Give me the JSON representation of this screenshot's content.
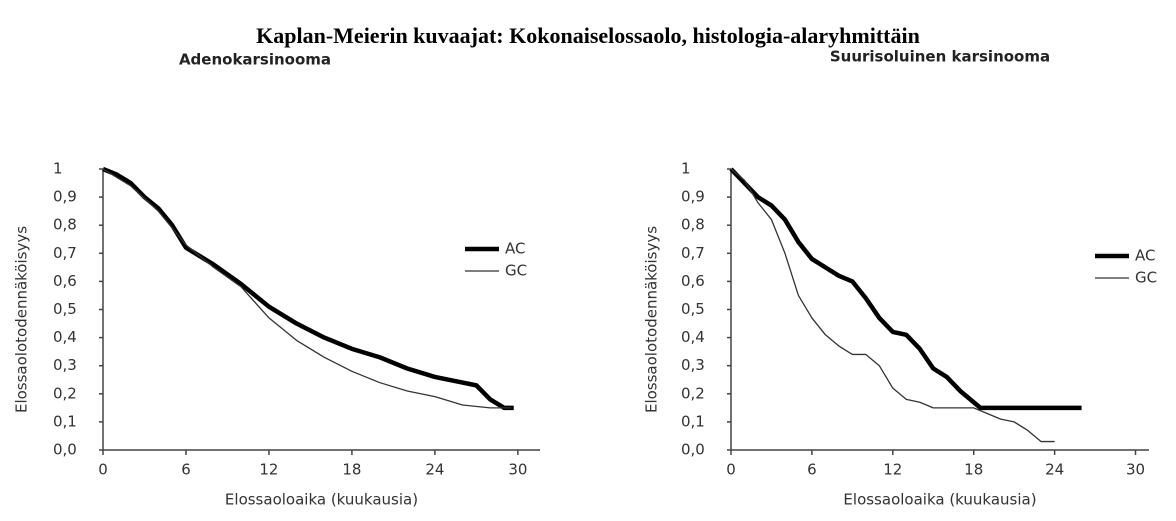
{
  "title": "Kaplan-Meierin kuvaajat: Kokonaiselossaolo, histologia-alaryhmittäin",
  "chart_data": [
    {
      "type": "line",
      "title": "Adenokarsinooma",
      "xlabel": "Elossaoloaika (kuukausia)",
      "ylabel": "Elossaolotodennäköisyys",
      "xlim": [
        0,
        31.6
      ],
      "xticks": [
        0,
        6,
        12,
        18,
        24,
        30
      ],
      "ylim": [
        0,
        1
      ],
      "yticks": [
        {
          "value": 0,
          "label": "0,0"
        },
        {
          "value": 0.1,
          "label": "0,1"
        },
        {
          "value": 0.2,
          "label": "0,2"
        },
        {
          "value": 0.3,
          "label": "0,3"
        },
        {
          "value": 0.4,
          "label": "0,4"
        },
        {
          "value": 0.5,
          "label": "0,5"
        },
        {
          "value": 0.6,
          "label": "0,6"
        },
        {
          "value": 0.7,
          "label": "0,7"
        },
        {
          "value": 0.8,
          "label": "0,8"
        },
        {
          "value": 0.9,
          "label": "0,9"
        },
        1
      ],
      "series": [
        {
          "name": "AC",
          "color": "#000000",
          "x": [
            0,
            1,
            2,
            3,
            4,
            5,
            6,
            8,
            10,
            12,
            14,
            16,
            18,
            20,
            22,
            24,
            26,
            27,
            28,
            29,
            29.7
          ],
          "values": [
            1,
            0.98,
            0.95,
            0.9,
            0.86,
            0.8,
            0.72,
            0.66,
            0.59,
            0.51,
            0.45,
            0.4,
            0.36,
            0.33,
            0.29,
            0.26,
            0.24,
            0.23,
            0.18,
            0.15,
            0.15
          ]
        },
        {
          "name": "GC",
          "color": "#333333",
          "x": [
            0,
            2,
            4,
            6,
            8,
            10,
            12,
            14,
            16,
            18,
            20,
            22,
            24,
            26,
            28,
            29.5
          ],
          "values": [
            1,
            0.94,
            0.85,
            0.73,
            0.65,
            0.58,
            0.47,
            0.39,
            0.33,
            0.28,
            0.24,
            0.21,
            0.19,
            0.16,
            0.15,
            0.15
          ]
        }
      ]
    },
    {
      "type": "line",
      "title": "Suurisoluinen karsinooma",
      "xlabel": "Elossaoloaika (kuukausia)",
      "ylabel": "Elossaolotodennäköisyys",
      "xlim": [
        0,
        31
      ],
      "xticks": [
        0,
        6,
        12,
        18,
        24,
        30
      ],
      "ylim": [
        0,
        1
      ],
      "yticks": [
        {
          "value": 0,
          "label": "0,0"
        },
        {
          "value": 0.1,
          "label": "0,1"
        },
        {
          "value": 0.2,
          "label": "0,2"
        },
        {
          "value": 0.3,
          "label": "0,3"
        },
        {
          "value": 0.4,
          "label": "0,4"
        },
        {
          "value": 0.5,
          "label": "0,5"
        },
        {
          "value": 0.6,
          "label": "0,6"
        },
        {
          "value": 0.7,
          "label": "0,7"
        },
        {
          "value": 0.8,
          "label": "0,8"
        },
        {
          "value": 0.9,
          "label": "0,9"
        },
        1
      ],
      "series": [
        {
          "name": "AC",
          "color": "#000000",
          "x": [
            0,
            1,
            2,
            3,
            4,
            5,
            6,
            7,
            8,
            9,
            10,
            11,
            12,
            13,
            14,
            15,
            16,
            17,
            18,
            18.5,
            20,
            26
          ],
          "values": [
            1,
            0.95,
            0.9,
            0.87,
            0.82,
            0.74,
            0.68,
            0.65,
            0.62,
            0.6,
            0.54,
            0.47,
            0.42,
            0.41,
            0.36,
            0.29,
            0.26,
            0.21,
            0.17,
            0.15,
            0.15,
            0.15
          ]
        },
        {
          "name": "GC",
          "color": "#333333",
          "x": [
            0,
            1,
            2,
            3,
            4,
            5,
            6,
            7,
            8,
            9,
            10,
            11,
            12,
            13,
            14,
            15,
            18,
            19,
            20,
            21,
            22,
            23,
            24
          ],
          "values": [
            1,
            0.96,
            0.88,
            0.82,
            0.7,
            0.55,
            0.47,
            0.41,
            0.37,
            0.34,
            0.34,
            0.3,
            0.22,
            0.18,
            0.17,
            0.15,
            0.15,
            0.13,
            0.11,
            0.1,
            0.07,
            0.03,
            0.03
          ]
        }
      ]
    }
  ]
}
